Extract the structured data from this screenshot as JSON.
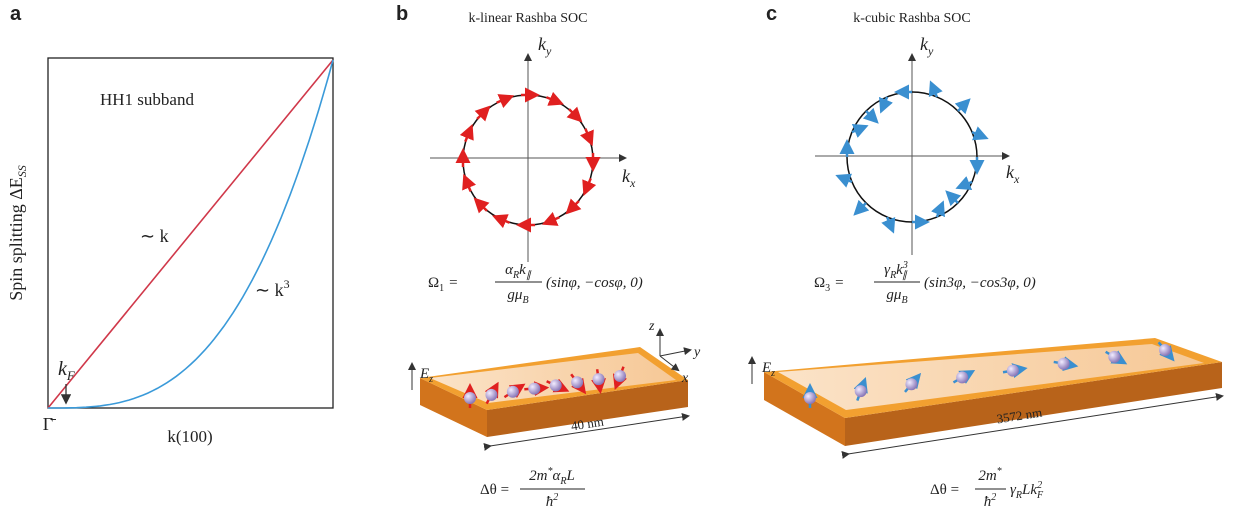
{
  "panel_a": {
    "label": "a",
    "annotation": "HH1 subband",
    "y_axis_label": {
      "text": "Spin splitting ΔE",
      "sub": "SS"
    },
    "x_axis_label": "k(100)",
    "origin_label": "Γ̄",
    "linear_label": "∼ k",
    "cubic_label": {
      "text": "∼ k",
      "sup": "3"
    },
    "fermi_label": {
      "text": "k",
      "sub": "F"
    }
  },
  "panel_b": {
    "label": "b",
    "title": "k-linear  Rashba  SOC",
    "ky": {
      "text": "k",
      "sub": "y"
    },
    "kx": {
      "text": "k",
      "sub": "x"
    },
    "formula": {
      "lhs": "Ω",
      "lhs_sub": "1",
      "equals": "=",
      "numerator": [
        "α",
        "R",
        "k",
        "∥"
      ],
      "denominator": [
        "gμ",
        "B"
      ],
      "tail": "(sinφ, −cosφ, 0)"
    },
    "field": {
      "text": "E",
      "sub": "z"
    },
    "axes": [
      "z",
      "y",
      "x"
    ],
    "length": "40 nm",
    "phase_formula": {
      "lhs": "Δθ =",
      "numerator": [
        "2m",
        "*",
        "α",
        "R",
        "L"
      ],
      "denominator": [
        "ħ",
        "2"
      ]
    }
  },
  "panel_c": {
    "label": "c",
    "title": "k-cubic  Rashba  SOC",
    "ky": {
      "text": "k",
      "sub": "y"
    },
    "kx": {
      "text": "k",
      "sub": "x"
    },
    "formula": {
      "lhs": "Ω",
      "lhs_sub": "3",
      "equals": "=",
      "numerator": [
        "γ",
        "R",
        "k",
        "3",
        "∥"
      ],
      "denominator": [
        "gμ",
        "B"
      ],
      "tail": "(sin3φ, −cos3φ, 0)"
    },
    "field": {
      "text": "E",
      "sub": "z"
    },
    "length": "3572 nm",
    "phase_formula": {
      "lhs": "Δθ =",
      "numerator": [
        "2m",
        "*"
      ],
      "denominator": [
        "ħ",
        "2"
      ],
      "tail": [
        "γ",
        "R",
        "Lk",
        "F",
        "2"
      ]
    }
  }
}
